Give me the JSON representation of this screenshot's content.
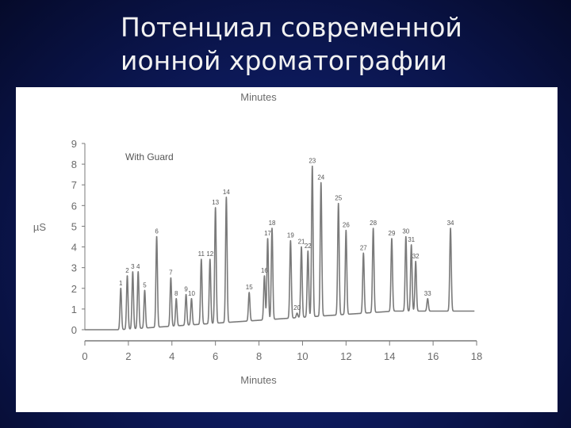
{
  "slide": {
    "title_line1": "Потенциал современной",
    "title_line2": "ионной хроматографии"
  },
  "colors": {
    "background": "#0d1a5c",
    "title_text": "#f2f2f2",
    "trace": "#7a7a7a",
    "axis": "#7a7a7a"
  },
  "chart_data": {
    "type": "line",
    "title": "",
    "xlabel": "Minutes",
    "xlabel_top": "Minutes",
    "ylabel": "µS",
    "xlim": [
      0,
      18
    ],
    "ylim": [
      0,
      9
    ],
    "x_ticks": [
      0,
      2,
      4,
      6,
      8,
      10,
      12,
      14,
      16,
      18
    ],
    "y_ticks": [
      0,
      1,
      2,
      3,
      4,
      5,
      6,
      7,
      8,
      9
    ],
    "grid": false,
    "annotation": "With Guard",
    "series": [
      {
        "baseline_start": 0.0,
        "baseline_end": 0.9,
        "peaks": [
          {
            "label": "1",
            "time": 1.65,
            "height": 2.0
          },
          {
            "label": "2",
            "time": 1.95,
            "height": 2.6
          },
          {
            "label": "3",
            "time": 2.2,
            "height": 2.8
          },
          {
            "label": "4",
            "time": 2.45,
            "height": 2.8
          },
          {
            "label": "5",
            "time": 2.75,
            "height": 1.9
          },
          {
            "label": "6",
            "time": 3.3,
            "height": 4.5
          },
          {
            "label": "7",
            "time": 3.95,
            "height": 2.5
          },
          {
            "label": "8",
            "time": 4.2,
            "height": 1.5
          },
          {
            "label": "9",
            "time": 4.65,
            "height": 1.7
          },
          {
            "label": "10",
            "time": 4.9,
            "height": 1.5
          },
          {
            "label": "11",
            "time": 5.35,
            "height": 3.4
          },
          {
            "label": "12",
            "time": 5.75,
            "height": 3.4
          },
          {
            "label": "13",
            "time": 6.0,
            "height": 5.9
          },
          {
            "label": "14",
            "time": 6.5,
            "height": 6.4
          },
          {
            "label": "15",
            "time": 7.55,
            "height": 1.8
          },
          {
            "label": "16",
            "time": 8.25,
            "height": 2.6
          },
          {
            "label": "17",
            "time": 8.4,
            "height": 4.4
          },
          {
            "label": "18",
            "time": 8.6,
            "height": 4.9
          },
          {
            "label": "19",
            "time": 9.45,
            "height": 4.3
          },
          {
            "label": "20",
            "time": 9.75,
            "height": 0.8
          },
          {
            "label": "21",
            "time": 9.95,
            "height": 4.0
          },
          {
            "label": "22",
            "time": 10.25,
            "height": 3.8
          },
          {
            "label": "23",
            "time": 10.45,
            "height": 7.9
          },
          {
            "label": "24",
            "time": 10.85,
            "height": 7.1
          },
          {
            "label": "25",
            "time": 11.65,
            "height": 6.1
          },
          {
            "label": "26",
            "time": 12.0,
            "height": 4.8
          },
          {
            "label": "27",
            "time": 12.8,
            "height": 3.7
          },
          {
            "label": "28",
            "time": 13.25,
            "height": 4.9
          },
          {
            "label": "29",
            "time": 14.1,
            "height": 4.4
          },
          {
            "label": "30",
            "time": 14.75,
            "height": 4.5
          },
          {
            "label": "31",
            "time": 15.0,
            "height": 4.1
          },
          {
            "label": "32",
            "time": 15.2,
            "height": 3.3
          },
          {
            "label": "33",
            "time": 15.75,
            "height": 1.5
          },
          {
            "label": "34",
            "time": 16.8,
            "height": 4.9
          }
        ]
      }
    ]
  }
}
